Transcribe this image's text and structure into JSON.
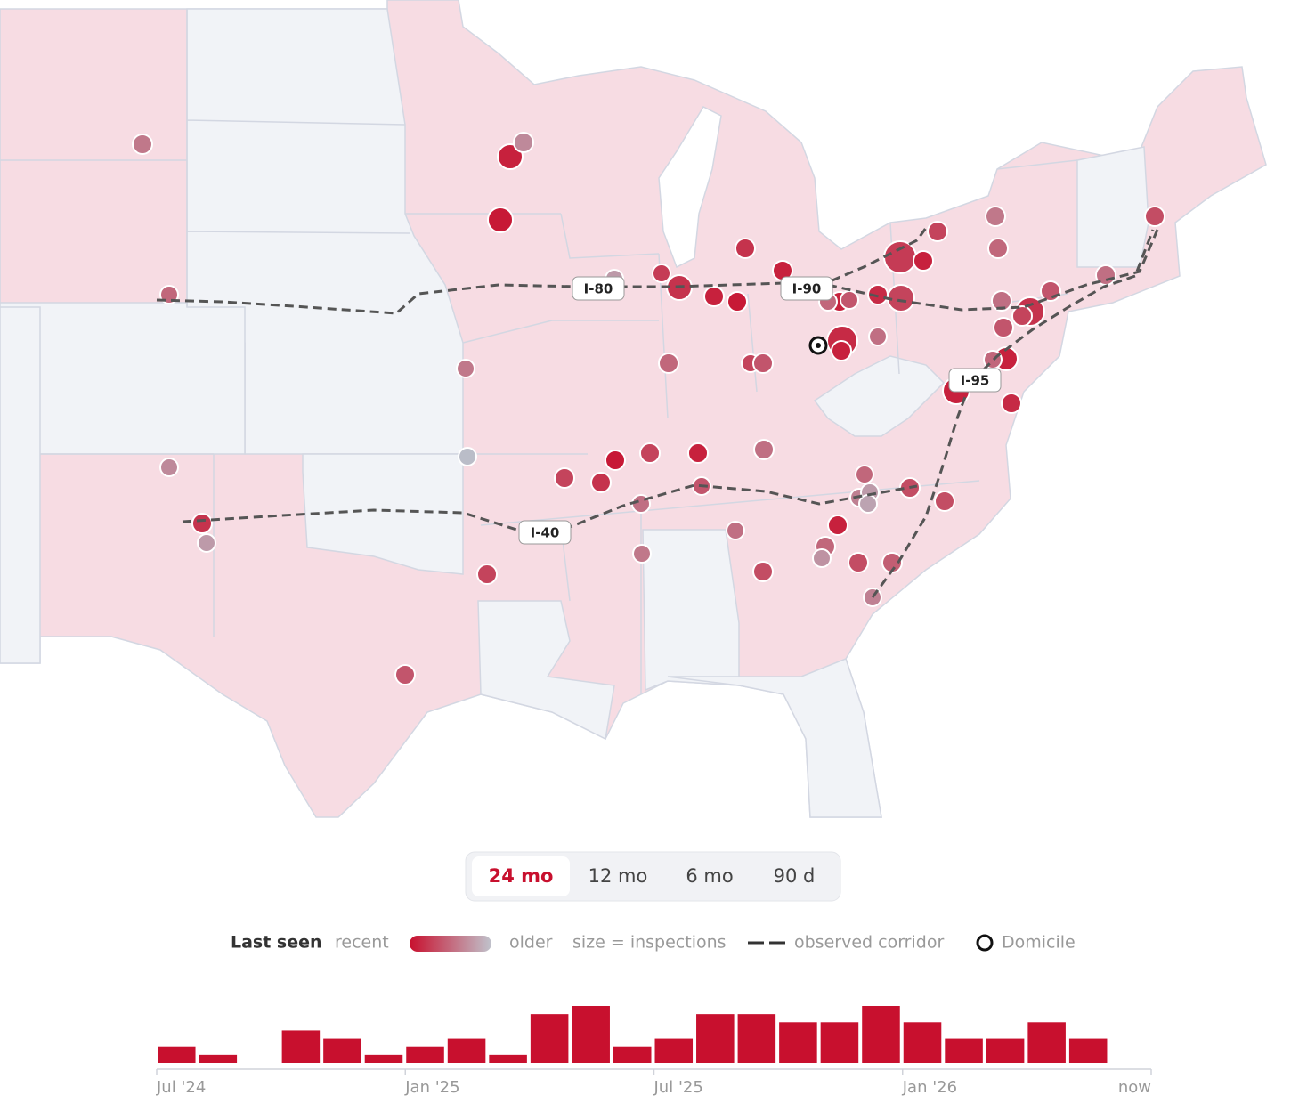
{
  "map": {
    "corridors": [
      "I-80",
      "I-90",
      "I-95",
      "I-40"
    ]
  },
  "range_selector": {
    "options": [
      "24 mo",
      "12 mo",
      "6 mo",
      "90 d"
    ],
    "selected": 0
  },
  "legend": {
    "title": "Last seen",
    "recent": "recent",
    "older": "older",
    "size": "size = inspections",
    "corridor": "observed corridor",
    "domicile": "Domicile"
  },
  "chart_data": {
    "type": "histogram",
    "bins": [
      0,
      1,
      2,
      3,
      4,
      5,
      6,
      7,
      8,
      9,
      10,
      11,
      12,
      13,
      14,
      15,
      16,
      17,
      18,
      19,
      20,
      21,
      22,
      23,
      24
    ],
    "values": [
      2,
      1,
      0,
      4,
      3,
      1,
      2,
      3,
      1,
      6,
      7,
      2,
      3,
      6,
      6,
      5,
      5,
      7,
      5,
      3,
      3,
      5,
      3,
      0
    ],
    "color": "#c8102e",
    "xlim": [
      0,
      24
    ],
    "ylim": [
      0,
      7
    ],
    "xticks": [
      {
        "value": 0,
        "label": "Jul '24"
      },
      {
        "value": 6,
        "label": "Jan '25"
      },
      {
        "value": 12,
        "label": "Jul '25"
      },
      {
        "value": 18,
        "label": "Jan '26"
      },
      {
        "value": 24,
        "label": "now"
      }
    ]
  }
}
